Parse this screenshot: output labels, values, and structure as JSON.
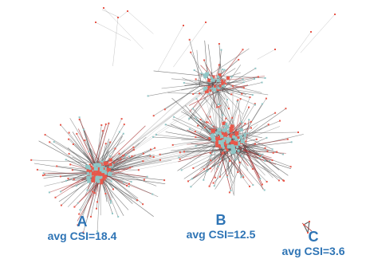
{
  "colors": {
    "label": "#2e74b5",
    "edge": "#555555",
    "edge_red": "#a83232",
    "node_red": "#e8574a",
    "node_teal": "#8fc6c6"
  },
  "clusters": [
    {
      "letter": "A",
      "csi_text": "avg CSI=18.4"
    },
    {
      "letter": "B",
      "csi_text": "avg CSI=12.5"
    },
    {
      "letter": "C",
      "csi_text": "avg CSI=3.6"
    }
  ]
}
